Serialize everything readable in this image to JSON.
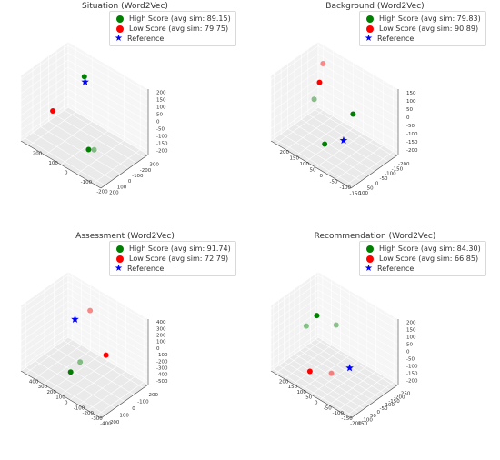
{
  "chart_data": [
    {
      "type": "scatter",
      "title": "Situation (Word2Vec)",
      "legend": [
        "High Score (avg sim: 89.15)",
        "Low Score (avg sim: 79.75)",
        "Reference"
      ],
      "colors": {
        "high": "#008000",
        "low": "#ff0000",
        "reference": "#0000ff"
      },
      "x_ticks": [
        "-300",
        "-200",
        "-100",
        "0",
        "100",
        "200"
      ],
      "y_ticks": [
        "200",
        "100",
        "0",
        "-100",
        "-200"
      ],
      "z_ticks": [
        "200",
        "150",
        "100",
        "50",
        "0",
        "-50",
        "-100",
        "-150",
        "-200"
      ],
      "series": [
        {
          "label": "High Score",
          "points": [
            {
              "x": -210,
              "y": 80,
              "z": 150,
              "alpha": 1
            },
            {
              "x": -20,
              "y": -40,
              "z": -200,
              "alpha": 1
            },
            {
              "x": -50,
              "y": -60,
              "z": -200,
              "alpha": 0.45
            }
          ]
        },
        {
          "label": "Low Score",
          "points": [
            {
              "x": 150,
              "y": 100,
              "z": 40,
              "alpha": 1
            }
          ]
        },
        {
          "label": "Reference",
          "points": [
            {
              "x": -220,
              "y": 80,
              "z": 110,
              "alpha": 1
            }
          ]
        }
      ]
    },
    {
      "type": "scatter",
      "title": "Background (Word2Vec)",
      "legend": [
        "High Score (avg sim: 79.83)",
        "Low Score (avg sim: 90.89)",
        "Reference"
      ],
      "colors": {
        "high": "#008000",
        "low": "#ff0000",
        "reference": "#0000ff"
      },
      "x_ticks": [
        "-200",
        "-150",
        "-100",
        "-50",
        "0",
        "50",
        "100"
      ],
      "y_ticks": [
        "200",
        "150",
        "100",
        "50",
        "0",
        "-50",
        "-100",
        "-150"
      ],
      "z_ticks": [
        "150",
        "100",
        "50",
        "0",
        "-50",
        "-100",
        "-150",
        "-200"
      ],
      "series": [
        {
          "label": "High Score",
          "points": [
            {
              "x": -150,
              "y": 0,
              "z": -60,
              "alpha": 1
            },
            {
              "x": 60,
              "y": 0,
              "z": -120,
              "alpha": 1
            },
            {
              "x": -10,
              "y": 100,
              "z": 40,
              "alpha": 0.45
            }
          ]
        },
        {
          "label": "Low Score",
          "points": [
            {
              "x": -50,
              "y": 100,
              "z": 120,
              "alpha": 1
            },
            {
              "x": -150,
              "y": 150,
              "z": 140,
              "alpha": 0.45
            }
          ]
        },
        {
          "label": "Reference",
          "points": [
            {
              "x": -80,
              "y": 0,
              "z": -180,
              "alpha": 1
            }
          ]
        }
      ]
    },
    {
      "type": "scatter",
      "title": "Assessment (Word2Vec)",
      "legend": [
        "High Score (avg sim: 91.74)",
        "Low Score (avg sim: 72.79)",
        "Reference"
      ],
      "colors": {
        "high": "#008000",
        "low": "#ff0000",
        "reference": "#0000ff"
      },
      "x_ticks": [
        "-200",
        "-100",
        "0",
        "100",
        "200"
      ],
      "y_ticks": [
        "400",
        "300",
        "200",
        "100",
        "0",
        "-100",
        "-200",
        "-300",
        "-400"
      ],
      "z_ticks": [
        "400",
        "300",
        "200",
        "100",
        "0",
        "-100",
        "-200",
        "-300",
        "-400",
        "-500"
      ],
      "series": [
        {
          "label": "High Score",
          "points": [
            {
              "x": 100,
              "y": 50,
              "z": -400,
              "alpha": 1
            },
            {
              "x": 0,
              "y": 50,
              "z": -350,
              "alpha": 0.45
            }
          ]
        },
        {
          "label": "Low Score",
          "points": [
            {
              "x": -180,
              "y": -50,
              "z": -350,
              "alpha": 1
            },
            {
              "x": -200,
              "y": 150,
              "z": 150,
              "alpha": 0.45
            }
          ]
        },
        {
          "label": "Reference",
          "points": [
            {
              "x": -40,
              "y": 150,
              "z": 180,
              "alpha": 1
            }
          ]
        }
      ]
    },
    {
      "type": "scatter",
      "title": "Recommendation (Word2Vec)",
      "legend": [
        "High Score (avg sim: 84.30)",
        "Low Score (avg sim: 66.85)",
        "Reference"
      ],
      "colors": {
        "high": "#008000",
        "low": "#ff0000",
        "reference": "#0000ff"
      },
      "x_ticks": [
        "-250",
        "-200",
        "-150",
        "-100",
        "-50",
        "0",
        "50",
        "100",
        "150"
      ],
      "y_ticks": [
        "200",
        "150",
        "100",
        "50",
        "0",
        "-50",
        "-100",
        "-150",
        "-200"
      ],
      "z_ticks": [
        "200",
        "150",
        "100",
        "50",
        "0",
        "-50",
        "-100",
        "-150",
        "-200"
      ],
      "series": [
        {
          "label": "High Score",
          "points": [
            {
              "x": -150,
              "y": 50,
              "z": 50,
              "alpha": 0.45
            },
            {
              "x": -50,
              "y": 100,
              "z": 130,
              "alpha": 1
            },
            {
              "x": 50,
              "y": 100,
              "z": 110,
              "alpha": 0.45
            }
          ]
        },
        {
          "label": "Low Score",
          "points": [
            {
              "x": 100,
              "y": 50,
              "z": -140,
              "alpha": 1
            },
            {
              "x": -20,
              "y": 0,
              "z": -180,
              "alpha": 0.45
            }
          ]
        },
        {
          "label": "Reference",
          "points": [
            {
              "x": -160,
              "y": -20,
              "z": -200,
              "alpha": 1
            }
          ]
        }
      ]
    }
  ]
}
